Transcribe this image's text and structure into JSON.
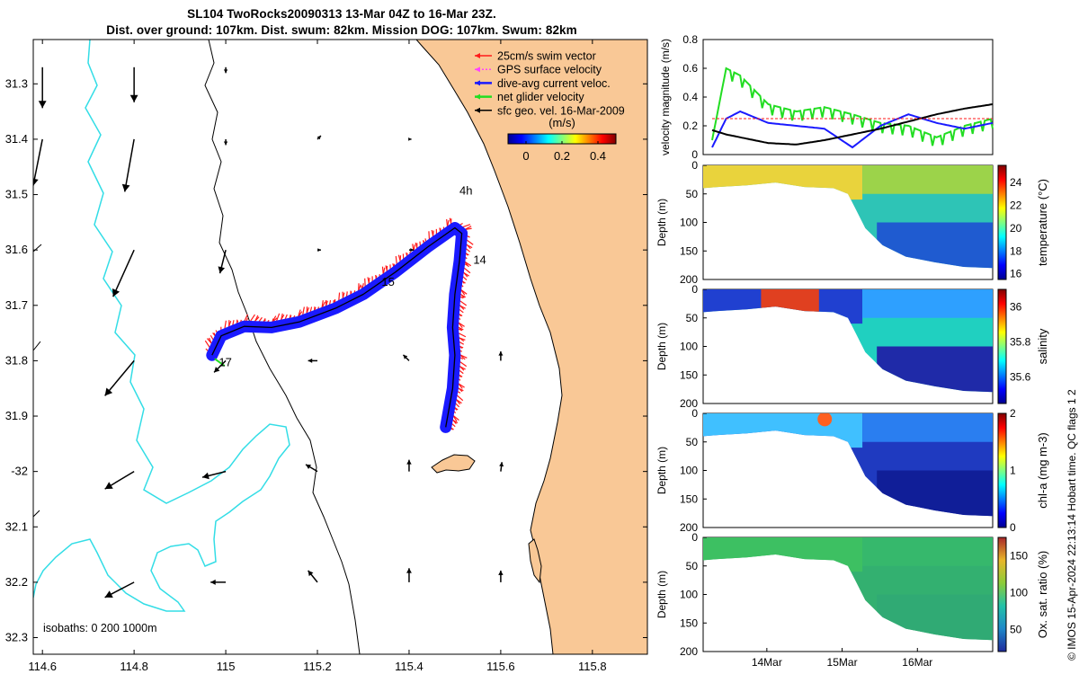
{
  "figure": {
    "title_line1": "SL104 TwoRocks20090313 13-Mar 04Z to 16-Mar 23Z.",
    "title_line2": "Dist. over ground: 107km. Dist. swum: 82km. Mission DOG: 107km. Swum: 82km",
    "footer_vertical": "© IMOS 15-Apr-2024 22:13:14 Hobart time. QC flags 1  2"
  },
  "colors": {
    "land": "#f9c896",
    "isobath": "#000000",
    "coast_200": "#33dde6",
    "swim_vector": "#ff1a1a",
    "gps_velocity": "#ff44ff",
    "dive_avg": "#1a1aff",
    "net_velocity": "#22dd22",
    "sfc_geo": "#000000"
  },
  "chart_data": [
    {
      "type": "scatter",
      "name": "map",
      "xlim": [
        114.58,
        115.92
      ],
      "ylim": [
        32.33,
        31.22
      ],
      "xticks": [
        114.6,
        114.8,
        115,
        115.2,
        115.4,
        115.6,
        115.8
      ],
      "xtick_labels": [
        "114.6",
        "114.8",
        "115",
        "115.2",
        "115.4",
        "115.6",
        "115.8"
      ],
      "yticks": [
        31.3,
        31.4,
        31.5,
        31.6,
        31.7,
        31.8,
        31.9,
        32.0,
        32.1,
        32.2,
        32.3
      ],
      "ytick_labels": [
        "31.3",
        "31.4",
        "31.5",
        "31.6",
        "31.7",
        "31.8",
        "31.9",
        "-32",
        "32.1",
        "32.2",
        "32.3"
      ],
      "legend": [
        {
          "label": "25cm/s swim vector",
          "color_key": "swim_vector"
        },
        {
          "label": "GPS surface velocity",
          "color_key": "gps_velocity"
        },
        {
          "label": "dive-avg current veloc.",
          "color_key": "dive_avg"
        },
        {
          "label": "net glider velocity",
          "color_key": "net_velocity"
        },
        {
          "label": "sfc geo. vel. 16-Mar-2009",
          "color_key": "sfc_geo"
        }
      ],
      "legend_position": "top-right",
      "colorbar": {
        "label": "(m/s)",
        "ticks": [
          "0",
          "0.2",
          "0.4"
        ],
        "range": [
          -0.1,
          0.5
        ]
      },
      "annotations": [
        {
          "text": "4h",
          "lon": 115.51,
          "lat": 31.5
        },
        {
          "text": "14",
          "lon": 115.54,
          "lat": 31.625
        },
        {
          "text": "15",
          "lon": 115.34,
          "lat": 31.665
        },
        {
          "text": "17",
          "lon": 114.985,
          "lat": 31.81
        }
      ],
      "isobath_label": "isobaths: 0   200   1000m",
      "glider_track": {
        "lon": [
          114.97,
          114.99,
          115.04,
          115.1,
          115.16,
          115.24,
          115.3,
          115.37,
          115.44,
          115.5,
          115.515,
          115.51,
          115.5,
          115.495,
          115.5,
          115.495,
          115.48
        ],
        "lat": [
          31.79,
          31.755,
          31.738,
          31.74,
          31.73,
          31.705,
          31.68,
          31.64,
          31.595,
          31.56,
          31.57,
          31.62,
          31.68,
          31.74,
          31.79,
          31.85,
          31.92
        ]
      },
      "surface_vectors": [
        {
          "lon": 114.6,
          "lat": 31.27,
          "u": 0.0,
          "v": -0.35
        },
        {
          "lon": 114.8,
          "lat": 31.27,
          "u": 0.0,
          "v": -0.3
        },
        {
          "lon": 115.0,
          "lat": 31.27,
          "u": 0.0,
          "v": -0.05
        },
        {
          "lon": 114.6,
          "lat": 31.4,
          "u": -0.08,
          "v": -0.4
        },
        {
          "lon": 114.8,
          "lat": 31.4,
          "u": -0.08,
          "v": -0.45
        },
        {
          "lon": 115.0,
          "lat": 31.4,
          "u": 0.0,
          "v": -0.05
        },
        {
          "lon": 114.8,
          "lat": 31.6,
          "u": -0.18,
          "v": -0.4
        },
        {
          "lon": 115.0,
          "lat": 31.6,
          "u": -0.05,
          "v": -0.2
        },
        {
          "lon": 115.2,
          "lat": 31.4,
          "u": 0.03,
          "v": 0.03
        },
        {
          "lon": 115.4,
          "lat": 31.4,
          "u": 0.02,
          "v": 0.0
        },
        {
          "lon": 115.2,
          "lat": 31.6,
          "u": 0.03,
          "v": 0.0
        },
        {
          "lon": 115.4,
          "lat": 31.6,
          "u": 0.04,
          "v": 0.0
        },
        {
          "lon": 114.8,
          "lat": 31.8,
          "u": -0.25,
          "v": -0.3
        },
        {
          "lon": 115.0,
          "lat": 31.8,
          "u": -0.1,
          "v": -0.1
        },
        {
          "lon": 115.2,
          "lat": 31.8,
          "u": -0.08,
          "v": 0.0
        },
        {
          "lon": 115.4,
          "lat": 31.8,
          "u": -0.05,
          "v": 0.05
        },
        {
          "lon": 115.6,
          "lat": 31.8,
          "u": 0.0,
          "v": 0.08
        },
        {
          "lon": 114.8,
          "lat": 32.0,
          "u": -0.25,
          "v": -0.15
        },
        {
          "lon": 115.0,
          "lat": 32.0,
          "u": -0.2,
          "v": -0.05
        },
        {
          "lon": 115.2,
          "lat": 32.0,
          "u": -0.1,
          "v": 0.06
        },
        {
          "lon": 115.4,
          "lat": 32.0,
          "u": 0.0,
          "v": 0.1
        },
        {
          "lon": 115.6,
          "lat": 32.0,
          "u": 0.01,
          "v": 0.08
        },
        {
          "lon": 114.8,
          "lat": 32.2,
          "u": -0.25,
          "v": -0.13
        },
        {
          "lon": 115.0,
          "lat": 32.2,
          "u": -0.13,
          "v": 0.0
        },
        {
          "lon": 115.2,
          "lat": 32.2,
          "u": -0.08,
          "v": 0.1
        },
        {
          "lon": 115.4,
          "lat": 32.2,
          "u": 0.0,
          "v": 0.12
        },
        {
          "lon": 115.6,
          "lat": 32.2,
          "u": 0.0,
          "v": 0.1
        }
      ]
    },
    {
      "type": "line",
      "name": "velocity",
      "ylabel": "velocity magnitude (m/s)",
      "ylim": [
        0,
        0.8
      ],
      "yticks": [
        "0",
        "0.2",
        "0.4",
        "0.6",
        "0.8"
      ],
      "x": [
        0,
        0.05,
        0.1,
        0.2,
        0.3,
        0.4,
        0.5,
        0.6,
        0.7,
        0.8,
        0.9,
        1.0
      ],
      "series": [
        {
          "name": "net glider velocity",
          "color_key": "net_velocity",
          "values": [
            0.1,
            0.6,
            0.55,
            0.35,
            0.3,
            0.33,
            0.28,
            0.22,
            0.2,
            0.12,
            0.2,
            0.25
          ]
        },
        {
          "name": "dive-avg current veloc.",
          "color_key": "dive_avg",
          "values": [
            0.05,
            0.25,
            0.3,
            0.22,
            0.2,
            0.18,
            0.05,
            0.2,
            0.28,
            0.22,
            0.18,
            0.22
          ]
        },
        {
          "name": "sfc geo. vel.",
          "color_key": "sfc_geo",
          "values": [
            0.17,
            0.14,
            0.12,
            0.08,
            0.07,
            0.1,
            0.14,
            0.18,
            0.23,
            0.28,
            0.32,
            0.35
          ]
        },
        {
          "name": "swim vector",
          "color_key": "swim_vector",
          "values": [
            0.25,
            0.25,
            0.25,
            0.25,
            0.25,
            0.25,
            0.25,
            0.25,
            0.25,
            0.25,
            0.25,
            0.25
          ]
        }
      ]
    },
    {
      "type": "heatmap",
      "name": "temperature",
      "ylabel": "Depth (m)",
      "cbar_label": "temperature (°C)",
      "yticks": [
        "0",
        "50",
        "100",
        "150",
        "200"
      ],
      "cbar_ticks": [
        "16",
        "18",
        "20",
        "22",
        "24"
      ],
      "values_range": [
        15.5,
        25.5
      ]
    },
    {
      "type": "heatmap",
      "name": "salinity",
      "ylabel": "Depth (m)",
      "cbar_label": "salinity",
      "yticks": [
        "0",
        "50",
        "100",
        "150",
        "200"
      ],
      "cbar_ticks": [
        "35.6",
        "35.8",
        "36"
      ],
      "values_range": [
        35.45,
        36.1
      ]
    },
    {
      "type": "heatmap",
      "name": "chl-a",
      "ylabel": "Depth (m)",
      "cbar_label": "chl-a (mg m-3)",
      "yticks": [
        "0",
        "50",
        "100",
        "150",
        "200"
      ],
      "cbar_ticks": [
        "0",
        "1",
        "2"
      ],
      "values_range": [
        0,
        2
      ]
    },
    {
      "type": "heatmap",
      "name": "oxygen",
      "ylabel": "Depth (m)",
      "cbar_label": "Ox. sat. ratio (%)",
      "yticks": [
        "0",
        "50",
        "100",
        "150",
        "200"
      ],
      "xtick_labels": [
        "14Mar",
        "15Mar",
        "16Mar"
      ],
      "cbar_ticks": [
        "50",
        "100",
        "150"
      ],
      "values_range": [
        20,
        175
      ]
    }
  ]
}
